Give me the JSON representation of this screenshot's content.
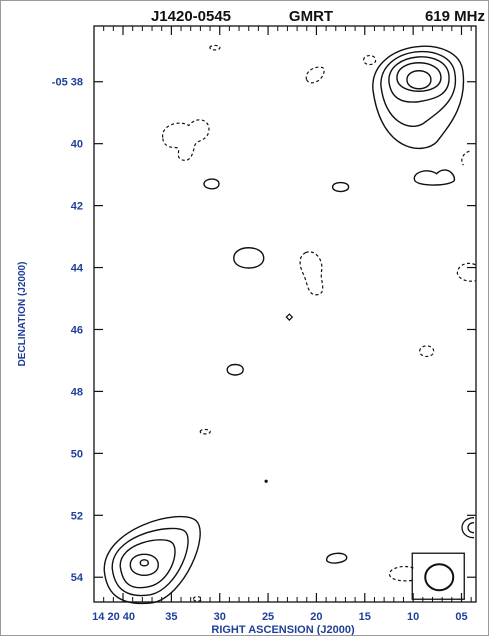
{
  "chart_data": {
    "type": "contour",
    "header": {
      "source": "J1420-0545",
      "telescope": "GMRT",
      "frequency": "619 MHz"
    },
    "xlabel": "RIGHT ASCENSION (J2000)",
    "ylabel": "DECLINATION (J2000)",
    "x_ticks": [
      {
        "ra_sec": 40,
        "label": "14 20 40"
      },
      {
        "ra_sec": 35,
        "label": "35"
      },
      {
        "ra_sec": 30,
        "label": "30"
      },
      {
        "ra_sec": 25,
        "label": "25"
      },
      {
        "ra_sec": 20,
        "label": "20"
      },
      {
        "ra_sec": 15,
        "label": "15"
      },
      {
        "ra_sec": 10,
        "label": "10"
      },
      {
        "ra_sec": 5,
        "label": "05"
      }
    ],
    "y_ticks": [
      {
        "dec_arcmin": 38,
        "label": "-05 38"
      },
      {
        "dec_arcmin": 40,
        "label": "40"
      },
      {
        "dec_arcmin": 42,
        "label": "42"
      },
      {
        "dec_arcmin": 44,
        "label": "44"
      },
      {
        "dec_arcmin": 46,
        "label": "46"
      },
      {
        "dec_arcmin": 48,
        "label": "48"
      },
      {
        "dec_arcmin": 50,
        "label": "50"
      },
      {
        "dec_arcmin": 52,
        "label": "52"
      },
      {
        "dec_arcmin": 54,
        "label": "54"
      }
    ],
    "x_range_ra_sec": [
      43,
      3.5
    ],
    "y_range_dec_arcmin": [
      54.8,
      36.2
    ],
    "components": [
      {
        "id": "ne-lobe",
        "ra_sec": 9.4,
        "dec_arcmin": 38.0,
        "levels": 5,
        "style": "solid"
      },
      {
        "id": "sw-lobe",
        "ra_sec": 37.8,
        "dec_arcmin": 53.6,
        "levels": 5,
        "style": "solid"
      },
      {
        "id": "blob-mid",
        "ra_sec": 27.0,
        "dec_arcmin": 43.7,
        "levels": 1,
        "style": "solid"
      },
      {
        "id": "blob-small-1",
        "ra_sec": 30.8,
        "dec_arcmin": 41.3,
        "levels": 1,
        "style": "solid"
      },
      {
        "id": "blob-small-2",
        "ra_sec": 17.5,
        "dec_arcmin": 41.4,
        "levels": 1,
        "style": "solid"
      },
      {
        "id": "blob-small-3",
        "ra_sec": 28.4,
        "dec_arcmin": 47.3,
        "levels": 1,
        "style": "solid"
      },
      {
        "id": "blob-small-4",
        "ra_sec": 17.9,
        "dec_arcmin": 53.4,
        "levels": 1,
        "style": "solid"
      },
      {
        "id": "east-arc",
        "ra_sec": 8.0,
        "dec_arcmin": 41.1,
        "levels": 1,
        "style": "solid"
      },
      {
        "id": "neg-1",
        "ra_sec": 33.2,
        "dec_arcmin": 39.8,
        "levels": 1,
        "style": "dashed"
      },
      {
        "id": "neg-2",
        "ra_sec": 20.5,
        "dec_arcmin": 44.1,
        "levels": 1,
        "style": "dashed"
      },
      {
        "id": "neg-3",
        "ra_sec": 20.2,
        "dec_arcmin": 37.8,
        "levels": 1,
        "style": "dashed"
      },
      {
        "id": "neg-4",
        "ra_sec": 14.5,
        "dec_arcmin": 37.3,
        "levels": 1,
        "style": "dashed"
      },
      {
        "id": "neg-5",
        "ra_sec": 8.6,
        "dec_arcmin": 46.7,
        "levels": 1,
        "style": "dashed"
      },
      {
        "id": "neg-6",
        "ra_sec": 4.6,
        "dec_arcmin": 44.1,
        "levels": 1,
        "style": "dashed"
      },
      {
        "id": "neg-7",
        "ra_sec": 4.8,
        "dec_arcmin": 40.5,
        "levels": 1,
        "style": "dashed"
      },
      {
        "id": "neg-8",
        "ra_sec": 11.0,
        "dec_arcmin": 53.9,
        "levels": 1,
        "style": "dashed"
      },
      {
        "id": "neg-9",
        "ra_sec": 30.5,
        "dec_arcmin": 36.9,
        "levels": 1,
        "style": "dashed"
      },
      {
        "id": "neg-10",
        "ra_sec": 31.5,
        "dec_arcmin": 49.3,
        "levels": 1,
        "style": "dashed"
      },
      {
        "id": "neg-11",
        "ra_sec": 32.3,
        "dec_arcmin": 54.7,
        "levels": 1,
        "style": "dashed"
      }
    ],
    "beam": {
      "ra_sec": 7.3,
      "dec_arcmin": 54.0,
      "major_arcsec": 30,
      "minor_arcsec": 27
    },
    "grid": false,
    "legend": "none",
    "colors": {
      "ink": "#111111",
      "axis_text": "#1f3f9a",
      "background": "#ffffff"
    }
  }
}
